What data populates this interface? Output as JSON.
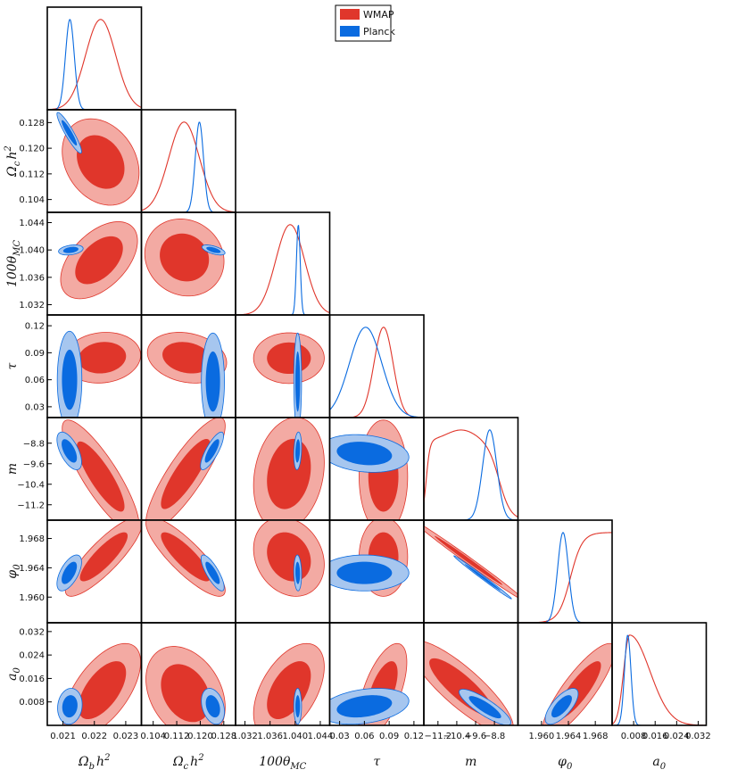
{
  "chart_data": {
    "type": "triangle",
    "title": "",
    "legend": {
      "placement": "top-center",
      "entries": [
        {
          "label": "WMAP",
          "color": "#e0362b",
          "light": "#f3aaa3"
        },
        {
          "label": "Planck",
          "color": "#0a6be0",
          "light": "#a6c6ef"
        }
      ]
    },
    "parameters": [
      {
        "name": "Omega_b_h2",
        "label": "Ω_b h^2",
        "range": [
          0.0205,
          0.0235
        ],
        "ticks": [
          "0.021",
          "0.022",
          "0.023"
        ],
        "tick_values": [
          0.021,
          0.022,
          0.023
        ]
      },
      {
        "name": "Omega_c_h2",
        "label": "Ω_c h^2",
        "range": [
          0.1,
          0.132
        ],
        "ticks": [
          "0.104",
          "0.112",
          "0.120",
          "0.128"
        ],
        "tick_values": [
          0.104,
          0.112,
          0.12,
          0.128
        ]
      },
      {
        "name": "100theta_MC",
        "label": "100θ_MC",
        "range": [
          1.0305,
          1.0455
        ],
        "ticks": [
          "1.032",
          "1.036",
          "1.040",
          "1.044"
        ],
        "tick_values": [
          1.032,
          1.036,
          1.04,
          1.044
        ]
      },
      {
        "name": "tau",
        "label": "τ",
        "range": [
          0.018,
          0.132
        ],
        "ticks": [
          "0.03",
          "0.06",
          "0.09",
          "0.12"
        ],
        "tick_values": [
          0.03,
          0.06,
          0.09,
          0.12
        ]
      },
      {
        "name": "m",
        "label": "m",
        "range": [
          -11.8,
          -7.8
        ],
        "ticks": [
          "−11.2",
          "−10.4",
          "−9.6",
          "−8.8"
        ],
        "tick_values": [
          -11.2,
          -10.4,
          -9.6,
          -8.8
        ]
      },
      {
        "name": "phi_0",
        "label": "φ_0",
        "range": [
          1.9565,
          1.9705
        ],
        "ticks": [
          "1.960",
          "1.964",
          "1.968"
        ],
        "tick_values": [
          1.96,
          1.964,
          1.968
        ]
      },
      {
        "name": "a_0",
        "label": "a_0",
        "range": [
          0.0,
          0.035
        ],
        "ticks": [
          "0.008",
          "0.016",
          "0.024",
          "0.032"
        ],
        "tick_values": [
          0.008,
          0.016,
          0.024,
          0.032
        ]
      }
    ],
    "marginals": [
      {
        "series": [
          {
            "name": "WMAP",
            "peak": 0.0222,
            "sigma": 0.00048
          },
          {
            "name": "Planck",
            "peak": 0.02122,
            "sigma": 0.00014
          }
        ]
      },
      {
        "series": [
          {
            "name": "WMAP",
            "peak": 0.1145,
            "sigma": 0.0052
          },
          {
            "name": "Planck",
            "peak": 0.1197,
            "sigma": 0.0014
          }
        ]
      },
      {
        "series": [
          {
            "name": "WMAP",
            "peak": 1.0392,
            "sigma": 0.0023
          },
          {
            "name": "Planck",
            "peak": 1.0405,
            "sigma": 0.0003
          }
        ]
      },
      {
        "series": [
          {
            "name": "WMAP",
            "peak": 0.0832,
            "sigma": 0.0115
          },
          {
            "name": "Planck",
            "peak": 0.0615,
            "sigma": 0.0195
          }
        ]
      },
      {
        "series": [
          {
            "name": "WMAP",
            "kind": "plateau",
            "start": -11.7,
            "end": -8.6,
            "peak": -10.2
          },
          {
            "name": "Planck",
            "peak": -9.0,
            "sigma": 0.3
          }
        ]
      },
      {
        "series": [
          {
            "name": "WMAP",
            "kind": "rising",
            "center": 1.9643,
            "width": 0.0016
          },
          {
            "name": "Planck",
            "peak": 1.9632,
            "sigma": 0.0008
          }
        ]
      },
      {
        "series": [
          {
            "name": "WMAP",
            "peak": 0.0065,
            "sigma_left": 0.0022,
            "sigma_right": 0.0075
          },
          {
            "name": "Planck",
            "peak": 0.0058,
            "sigma": 0.0012
          }
        ]
      }
    ],
    "joint": [
      {
        "row": 1,
        "col": 0,
        "series": [
          {
            "name": "WMAP",
            "cx": 0.0222,
            "cy": 0.1157,
            "sx": 0.0005,
            "sy": 0.0055,
            "rho": -0.25
          },
          {
            "name": "Planck",
            "cx": 0.0212,
            "cy": 0.1248,
            "sx": 0.00016,
            "sy": 0.0026,
            "rho": -0.92
          }
        ]
      },
      {
        "row": 2,
        "col": 0,
        "series": [
          {
            "name": "WMAP",
            "cx": 0.02215,
            "cy": 1.0385,
            "sx": 0.0005,
            "sy": 0.0023,
            "rho": 0.5
          },
          {
            "name": "Planck",
            "cx": 0.02125,
            "cy": 1.04,
            "sx": 0.00016,
            "sy": 0.0003,
            "rho": 0.3
          }
        ]
      },
      {
        "row": 2,
        "col": 1,
        "series": [
          {
            "name": "WMAP",
            "cx": 0.1146,
            "cy": 1.0389,
            "sx": 0.0055,
            "sy": 0.0023,
            "rho": -0.1
          },
          {
            "name": "Planck",
            "cx": 0.1245,
            "cy": 1.04,
            "sx": 0.0016,
            "sy": 0.0003,
            "rho": -0.6
          }
        ]
      },
      {
        "row": 3,
        "col": 0,
        "series": [
          {
            "name": "WMAP",
            "cx": 0.02225,
            "cy": 0.0845,
            "sx": 0.0005,
            "sy": 0.0115,
            "rho": 0.1
          },
          {
            "name": "Planck",
            "cx": 0.02121,
            "cy": 0.06,
            "sx": 0.00016,
            "sy": 0.022,
            "rho": 0.0
          }
        ]
      },
      {
        "row": 3,
        "col": 1,
        "series": [
          {
            "name": "WMAP",
            "cx": 0.1155,
            "cy": 0.0845,
            "sx": 0.0055,
            "sy": 0.0115,
            "rho": -0.2
          },
          {
            "name": "Planck",
            "cx": 0.1243,
            "cy": 0.058,
            "sx": 0.0016,
            "sy": 0.022,
            "rho": 0.0
          }
        ]
      },
      {
        "row": 3,
        "col": 2,
        "series": [
          {
            "name": "WMAP",
            "cx": 1.039,
            "cy": 0.084,
            "sx": 0.0023,
            "sy": 0.0115,
            "rho": 0.0
          },
          {
            "name": "Planck",
            "cx": 1.0404,
            "cy": 0.058,
            "sx": 0.00025,
            "sy": 0.022,
            "rho": 0.0
          }
        ]
      },
      {
        "row": 4,
        "col": 0,
        "series": [
          {
            "name": "WMAP",
            "cx": 0.0222,
            "cy": -10.1,
            "sx": 0.0005,
            "sy": 0.9,
            "rho": -0.85
          },
          {
            "name": "Planck",
            "cx": 0.0212,
            "cy": -9.1,
            "sx": 0.00016,
            "sy": 0.3,
            "rho": -0.6
          }
        ]
      },
      {
        "row": 4,
        "col": 1,
        "series": [
          {
            "name": "WMAP",
            "cx": 0.115,
            "cy": -10.0,
            "sx": 0.0055,
            "sy": 0.9,
            "rho": 0.85
          },
          {
            "name": "Planck",
            "cx": 0.124,
            "cy": -9.1,
            "sx": 0.0016,
            "sy": 0.3,
            "rho": 0.8
          }
        ]
      },
      {
        "row": 4,
        "col": 2,
        "series": [
          {
            "name": "WMAP",
            "cx": 1.039,
            "cy": -10.0,
            "sx": 0.0023,
            "sy": 0.9,
            "rho": 0.2
          },
          {
            "name": "Planck",
            "cx": 1.0404,
            "cy": -9.1,
            "sx": 0.00025,
            "sy": 0.3,
            "rho": 0.2
          }
        ]
      },
      {
        "row": 4,
        "col": 3,
        "series": [
          {
            "name": "WMAP",
            "cx": 0.083,
            "cy": -10.1,
            "sx": 0.012,
            "sy": 0.9,
            "rho": 0.0
          },
          {
            "name": "Planck",
            "cx": 0.06,
            "cy": -9.2,
            "sx": 0.022,
            "sy": 0.3,
            "rho": -0.2
          }
        ]
      },
      {
        "row": 5,
        "col": 0,
        "series": [
          {
            "name": "WMAP",
            "cx": 0.0223,
            "cy": 1.9655,
            "sx": 0.0005,
            "sy": 0.0022,
            "rho": 0.85
          },
          {
            "name": "Planck",
            "cx": 0.0212,
            "cy": 1.9633,
            "sx": 0.00016,
            "sy": 0.001,
            "rho": 0.6
          }
        ]
      },
      {
        "row": 5,
        "col": 1,
        "series": [
          {
            "name": "WMAP",
            "cx": 0.115,
            "cy": 1.9655,
            "sx": 0.0055,
            "sy": 0.0022,
            "rho": -0.85
          },
          {
            "name": "Planck",
            "cx": 0.1242,
            "cy": 1.9633,
            "sx": 0.0016,
            "sy": 0.001,
            "rho": -0.8
          }
        ]
      },
      {
        "row": 5,
        "col": 2,
        "series": [
          {
            "name": "WMAP",
            "cx": 1.039,
            "cy": 1.9655,
            "sx": 0.0023,
            "sy": 0.0022,
            "rho": -0.2
          },
          {
            "name": "Planck",
            "cx": 1.0404,
            "cy": 1.9633,
            "sx": 0.00025,
            "sy": 0.001,
            "rho": -0.1
          }
        ]
      },
      {
        "row": 5,
        "col": 3,
        "series": [
          {
            "name": "WMAP",
            "cx": 0.083,
            "cy": 1.9655,
            "sx": 0.012,
            "sy": 0.0022,
            "rho": 0.0
          },
          {
            "name": "Planck",
            "cx": 0.06,
            "cy": 1.9633,
            "sx": 0.022,
            "sy": 0.001,
            "rho": 0.0
          }
        ]
      },
      {
        "row": 5,
        "col": 4,
        "series": [
          {
            "name": "WMAP",
            "cx": -9.9,
            "cy": 1.965,
            "sx": 0.95,
            "sy": 0.0022,
            "rho": -0.995
          },
          {
            "name": "Planck",
            "cx": -9.3,
            "cy": 1.9627,
            "sx": 0.5,
            "sy": 0.0012,
            "rho": -0.995
          }
        ]
      },
      {
        "row": 6,
        "col": 0,
        "series": [
          {
            "name": "WMAP",
            "cx": 0.02225,
            "cy": 0.012,
            "sx": 0.0005,
            "sy": 0.0065,
            "rho": 0.6
          },
          {
            "name": "Planck",
            "cx": 0.02122,
            "cy": 0.0065,
            "sx": 0.00016,
            "sy": 0.0025,
            "rho": 0.1
          }
        ]
      },
      {
        "row": 6,
        "col": 1,
        "series": [
          {
            "name": "WMAP",
            "cx": 0.115,
            "cy": 0.011,
            "sx": 0.0055,
            "sy": 0.0065,
            "rho": -0.3
          },
          {
            "name": "Planck",
            "cx": 0.1243,
            "cy": 0.0065,
            "sx": 0.0016,
            "sy": 0.0025,
            "rho": -0.3
          }
        ]
      },
      {
        "row": 6,
        "col": 2,
        "series": [
          {
            "name": "WMAP",
            "cx": 1.039,
            "cy": 0.012,
            "sx": 0.0023,
            "sy": 0.0065,
            "rho": 0.5
          },
          {
            "name": "Planck",
            "cx": 1.0404,
            "cy": 0.0065,
            "sx": 0.00025,
            "sy": 0.0025,
            "rho": 0.0
          }
        ]
      },
      {
        "row": 6,
        "col": 3,
        "series": [
          {
            "name": "WMAP",
            "cx": 0.082,
            "cy": 0.012,
            "sx": 0.012,
            "sy": 0.0065,
            "rho": 0.6
          },
          {
            "name": "Planck",
            "cx": 0.06,
            "cy": 0.0065,
            "sx": 0.022,
            "sy": 0.0025,
            "rho": 0.3
          }
        ]
      },
      {
        "row": 6,
        "col": 4,
        "series": [
          {
            "name": "WMAP",
            "cx": -10.2,
            "cy": 0.013,
            "sx": 0.9,
            "sy": 0.0065,
            "rho": -0.85
          },
          {
            "name": "Planck",
            "cx": -9.2,
            "cy": 0.0062,
            "sx": 0.45,
            "sy": 0.0025,
            "rho": -0.85
          }
        ]
      },
      {
        "row": 6,
        "col": 5,
        "series": [
          {
            "name": "WMAP",
            "cx": 1.9655,
            "cy": 0.012,
            "sx": 0.0022,
            "sy": 0.0065,
            "rho": 0.85
          },
          {
            "name": "Planck",
            "cx": 1.963,
            "cy": 0.0065,
            "sx": 0.001,
            "sy": 0.0025,
            "rho": 0.7
          }
        ]
      }
    ]
  }
}
